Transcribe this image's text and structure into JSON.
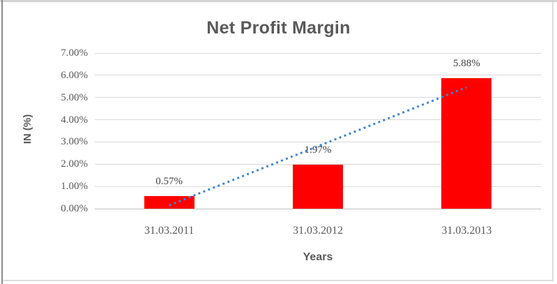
{
  "chart_data": {
    "type": "bar",
    "title": "Net Profit Margin",
    "xlabel": "Years",
    "ylabel": "IN (%)",
    "categories": [
      "31.03.2011",
      "31.03.2012",
      "31.03.2013"
    ],
    "values": [
      0.57,
      1.97,
      5.88
    ],
    "data_labels": [
      "0.57%",
      "1.97%",
      "5.88%"
    ],
    "ylim": [
      0,
      7
    ],
    "ytick_labels": [
      "7.00%",
      "6.00%",
      "5.00%",
      "4.00%",
      "3.00%",
      "2.00%",
      "1.00%",
      "0.00%"
    ],
    "grid": true,
    "legend": "none",
    "bar_color": "#FF0000",
    "text_color": "#595959",
    "data_label_color": "#3F3F3F",
    "gridline_color": "#D9D9D9",
    "trendline": {
      "type": "linear",
      "style": "dotted",
      "color": "#4485C5",
      "start_value_pct": 0.15,
      "end_value_pct": 5.46
    }
  }
}
